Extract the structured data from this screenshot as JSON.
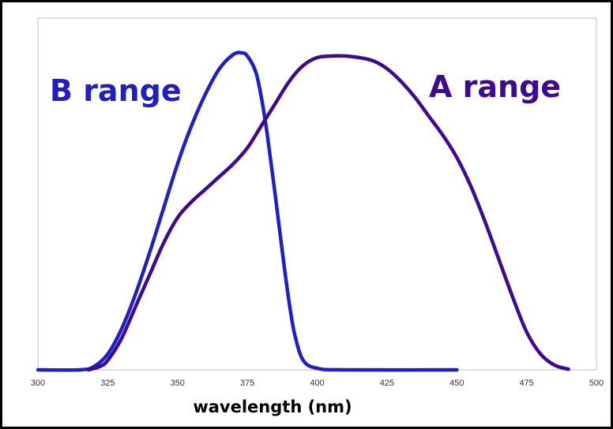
{
  "chart_data": {
    "type": "line",
    "title": "",
    "xlabel": "wavelength (nm)",
    "ylabel": "",
    "xlim": [
      300,
      500
    ],
    "ylim": [
      0,
      1
    ],
    "grid": false,
    "legend": "none",
    "x_ticks": [
      "300",
      "325",
      "350",
      "375",
      "400",
      "425",
      "450",
      "475",
      "500"
    ],
    "x_tick_values": [
      300,
      325,
      350,
      375,
      400,
      425,
      450,
      475,
      500
    ],
    "series": [
      {
        "name": "B range",
        "color": "#1f1fc4",
        "points": [
          [
            300,
            0.0
          ],
          [
            315,
            0.0
          ],
          [
            320,
            0.01
          ],
          [
            325,
            0.05
          ],
          [
            330,
            0.13
          ],
          [
            335,
            0.24
          ],
          [
            340,
            0.37
          ],
          [
            345,
            0.51
          ],
          [
            350,
            0.65
          ],
          [
            355,
            0.77
          ],
          [
            360,
            0.87
          ],
          [
            365,
            0.95
          ],
          [
            370,
            0.995
          ],
          [
            373,
            1.0
          ],
          [
            375,
            0.99
          ],
          [
            378,
            0.94
          ],
          [
            380,
            0.86
          ],
          [
            382,
            0.75
          ],
          [
            385,
            0.55
          ],
          [
            388,
            0.34
          ],
          [
            390,
            0.21
          ],
          [
            392,
            0.11
          ],
          [
            395,
            0.03
          ],
          [
            400,
            0.005
          ],
          [
            410,
            0.0
          ],
          [
            450,
            0.0
          ]
        ]
      },
      {
        "name": "A range",
        "color": "#3d0a91",
        "points": [
          [
            318,
            0.0
          ],
          [
            322,
            0.01
          ],
          [
            325,
            0.03
          ],
          [
            330,
            0.1
          ],
          [
            335,
            0.2
          ],
          [
            340,
            0.3
          ],
          [
            345,
            0.4
          ],
          [
            350,
            0.48
          ],
          [
            355,
            0.53
          ],
          [
            360,
            0.57
          ],
          [
            365,
            0.61
          ],
          [
            370,
            0.65
          ],
          [
            375,
            0.7
          ],
          [
            380,
            0.77
          ],
          [
            385,
            0.84
          ],
          [
            390,
            0.91
          ],
          [
            395,
            0.96
          ],
          [
            400,
            0.985
          ],
          [
            405,
            0.99
          ],
          [
            410,
            0.99
          ],
          [
            415,
            0.985
          ],
          [
            420,
            0.975
          ],
          [
            425,
            0.95
          ],
          [
            430,
            0.91
          ],
          [
            435,
            0.86
          ],
          [
            440,
            0.8
          ],
          [
            445,
            0.74
          ],
          [
            450,
            0.67
          ],
          [
            455,
            0.58
          ],
          [
            460,
            0.47
          ],
          [
            465,
            0.35
          ],
          [
            470,
            0.23
          ],
          [
            475,
            0.12
          ],
          [
            480,
            0.05
          ],
          [
            485,
            0.015
          ],
          [
            490,
            0.002
          ]
        ]
      }
    ]
  }
}
